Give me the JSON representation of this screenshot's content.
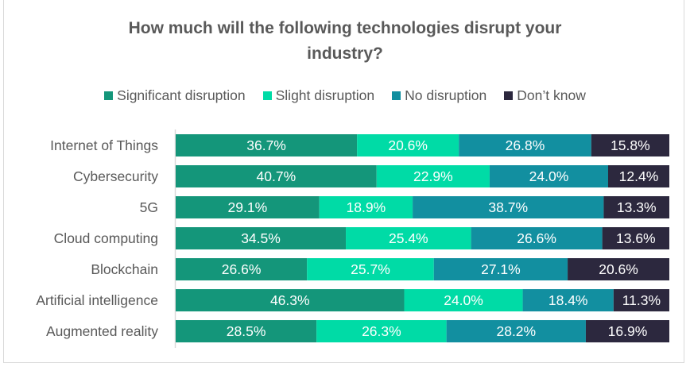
{
  "chart_data": {
    "type": "bar",
    "orientation": "horizontal",
    "stacked": "percent",
    "title": "How much will the following technologies disrupt your industry?",
    "title_lines": [
      "How much will the following technologies disrupt your",
      "industry?"
    ],
    "xlabel": "",
    "ylabel": "",
    "xlim": [
      0,
      100
    ],
    "grid": false,
    "legend_position": "top",
    "categories": [
      "Internet of Things",
      "Cybersecurity",
      "5G",
      "Cloud computing",
      "Blockchain",
      "Artificial intelligence",
      "Augmented reality"
    ],
    "series": [
      {
        "name": "Significant disruption",
        "color": "#14967A",
        "values": [
          36.7,
          40.7,
          29.1,
          34.5,
          26.6,
          46.3,
          28.5
        ],
        "labels": [
          "36.7%",
          "40.7%",
          "29.1%",
          "34.5%",
          "26.6%",
          "46.3%",
          "28.5%"
        ]
      },
      {
        "name": "Slight disruption",
        "color": "#00DBA6",
        "values": [
          20.6,
          22.9,
          18.9,
          25.4,
          25.7,
          24.0,
          26.3
        ],
        "labels": [
          "20.6%",
          "22.9%",
          "18.9%",
          "25.4%",
          "25.7%",
          "24.0%",
          "26.3%"
        ]
      },
      {
        "name": "No disruption",
        "color": "#128FA0",
        "values": [
          26.8,
          24.0,
          38.7,
          26.6,
          27.1,
          18.4,
          28.2
        ],
        "labels": [
          "26.8%",
          "24.0%",
          "38.7%",
          "26.6%",
          "27.1%",
          "18.4%",
          "28.2%"
        ]
      },
      {
        "name": "Don’t know",
        "color": "#2C283E",
        "values": [
          15.8,
          12.4,
          13.3,
          13.6,
          20.6,
          11.3,
          16.9
        ],
        "labels": [
          "15.8%",
          "12.4%",
          "13.3%",
          "13.6%",
          "20.6%",
          "11.3%",
          "16.9%"
        ]
      }
    ]
  }
}
